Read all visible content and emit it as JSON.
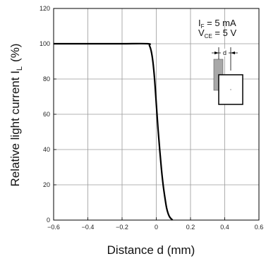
{
  "chart_data": {
    "type": "line",
    "title": "",
    "xlabel": "Distance d (mm)",
    "ylabel": "Relative light current  I",
    "ylabel_sub": "L",
    "ylabel_unit": "(%)",
    "xlim": [
      -0.6,
      0.6
    ],
    "ylim": [
      0,
      120
    ],
    "xticks": [
      -0.6,
      -0.4,
      -0.2,
      0,
      0.2,
      0.4,
      0.6
    ],
    "xtick_labels": [
      "−0.6",
      "−0.4",
      "−0.2",
      "0",
      "0.2",
      "0.4",
      "0.6"
    ],
    "yticks": [
      0,
      20,
      40,
      60,
      80,
      100,
      120
    ],
    "ytick_labels": [
      "0",
      "20",
      "40",
      "60",
      "80",
      "100",
      "120"
    ],
    "grid": true,
    "series": [
      {
        "x": [
          -0.6,
          -0.4,
          -0.2,
          -0.05,
          -0.04,
          -0.03,
          -0.02,
          -0.01,
          0,
          0.01,
          0.02,
          0.03,
          0.04,
          0.05,
          0.06,
          0.07,
          0.08,
          0.09,
          0.095
        ],
        "y": [
          100,
          100,
          100,
          100,
          99,
          96,
          90,
          80,
          66,
          52,
          40,
          29,
          20,
          13,
          7,
          3.5,
          1.5,
          0.5,
          0
        ],
        "color": "#000000"
      }
    ],
    "annotations": {
      "line1_main": "I",
      "line1_sub": "F",
      "line1_rest": " = 5 mA",
      "line2_main": "V",
      "line2_sub": "CE",
      "line2_rest": " = 5 V",
      "d_label": "d"
    }
  }
}
